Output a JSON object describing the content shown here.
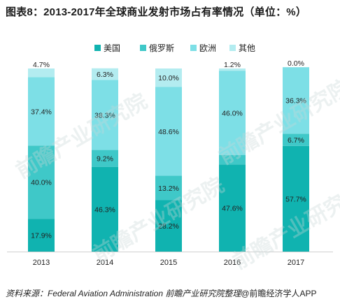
{
  "title": "图表8：2013-2017年全球商业发射市场占有率情况（单位：%）",
  "source": {
    "label": "资料来源：",
    "text": "Federal Aviation Administration  前瞻产业研究院整理",
    "brand": "@前瞻经济学人APP"
  },
  "watermark_text": "前瞻产业研究院",
  "chart_data": {
    "type": "bar",
    "stacked": true,
    "categories": [
      "2013",
      "2014",
      "2015",
      "2016",
      "2017"
    ],
    "series": [
      {
        "name": "美国",
        "color": "#10b3b0",
        "values": [
          17.9,
          46.3,
          28.2,
          47.6,
          57.7
        ]
      },
      {
        "name": "俄罗斯",
        "color": "#3fc8c8",
        "values": [
          40.0,
          9.2,
          13.2,
          5.2,
          6.7
        ]
      },
      {
        "name": "欧洲",
        "color": "#7ddfe6",
        "values": [
          37.4,
          38.3,
          48.6,
          46.0,
          36.3
        ]
      },
      {
        "name": "其他",
        "color": "#b3ecf0",
        "values": [
          4.7,
          6.3,
          10.0,
          1.2,
          0.0
        ]
      }
    ],
    "ylim": [
      0,
      100
    ],
    "value_suffix": "%",
    "legend_position": "top-right",
    "grid": false
  }
}
